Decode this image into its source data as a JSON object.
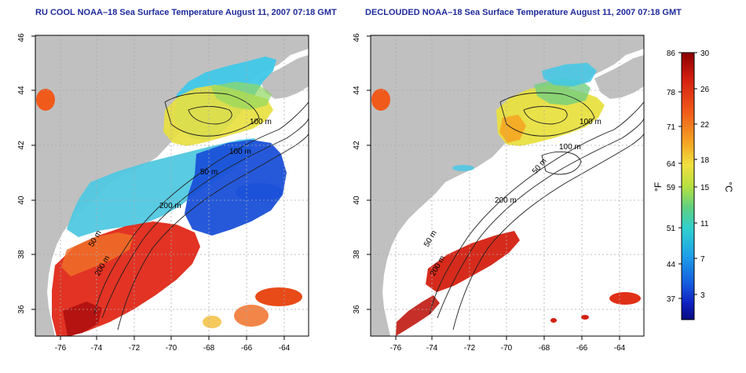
{
  "titles": {
    "left": "RU COOL NOAA–18 Sea Surface Temperature August 11, 2007 07:18 GMT",
    "right": "DECLOUDED NOAA–18 Sea Surface Temperature August 11, 2007 07:18 GMT"
  },
  "axes": {
    "lon_ticks": [
      "-76",
      "-74",
      "-72",
      "-70",
      "-68",
      "-66",
      "-64"
    ],
    "lat_ticks": [
      "36",
      "38",
      "40",
      "42",
      "44",
      "46"
    ]
  },
  "contour_labels": {
    "left": [
      "100 m",
      "100 m",
      "50 m",
      "200 m",
      "50 m",
      "200 m"
    ],
    "right": [
      "100 m",
      "100 m",
      "50 m",
      "200 m",
      "50 m",
      "200 m"
    ]
  },
  "colorbar": {
    "fahrenheit_unit": "°F",
    "celsius_unit": "°C",
    "fahrenheit_ticks": [
      "86",
      "78",
      "71",
      "64",
      "59",
      "51",
      "44",
      "37"
    ],
    "celsius_ticks": [
      "30",
      "26",
      "22",
      "18",
      "15",
      "11",
      "7",
      "3"
    ],
    "colors": [
      "#8b0000",
      "#d42010",
      "#f05a1a",
      "#f5a623",
      "#f0e040",
      "#b8e040",
      "#5fd080",
      "#30d0d0",
      "#1ea0e8",
      "#1560e0",
      "#1020c0",
      "#0a0a80"
    ]
  },
  "colors": {
    "land": "#c0c0c0",
    "no_data": "#ffffff",
    "title": "#1e2a9a",
    "grid": "#aaaaaa"
  }
}
